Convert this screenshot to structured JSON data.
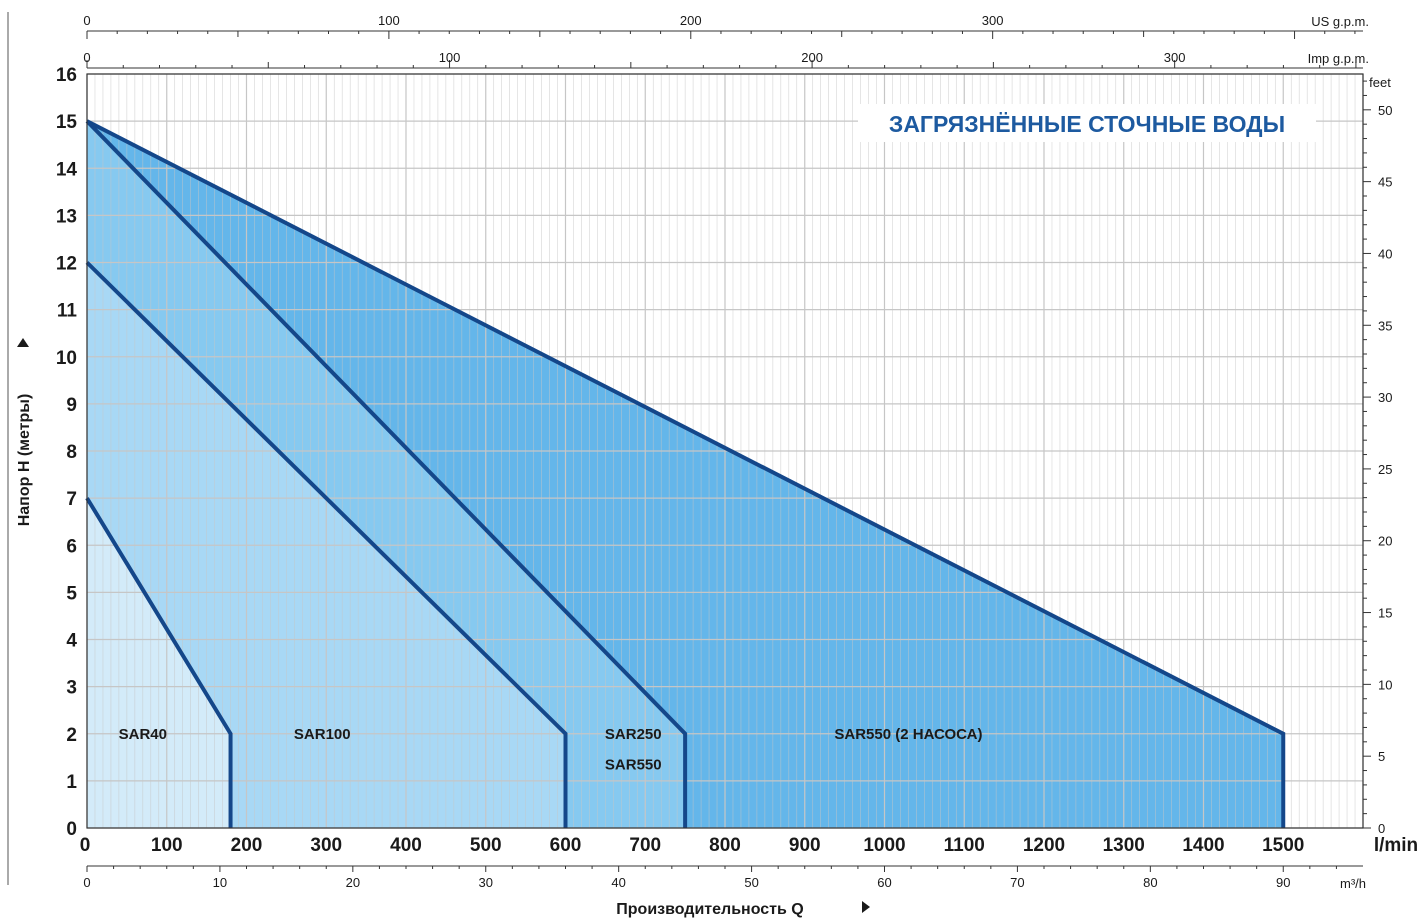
{
  "chart_data": {
    "type": "area",
    "title": "ЗАГРЯЗНЁННЫЕ СТОЧНЫЕ ВОДЫ",
    "xlabel": "Производительность Q",
    "ylabel": "Напор H (метры)",
    "x_unit": "l/min",
    "xlim": [
      0,
      1600
    ],
    "ylim": [
      0,
      16
    ],
    "x_ticks": [
      0,
      100,
      200,
      300,
      400,
      500,
      600,
      700,
      800,
      900,
      1000,
      1100,
      1200,
      1300,
      1400,
      1500
    ],
    "y_ticks": [
      0,
      1,
      2,
      3,
      4,
      5,
      6,
      7,
      8,
      9,
      10,
      11,
      12,
      13,
      14,
      15,
      16
    ],
    "grid": true,
    "secondary_axes": {
      "top_us_gpm": {
        "label": "US g.p.m.",
        "ticks": [
          0,
          100,
          200,
          300
        ]
      },
      "top_imp_gpm": {
        "label": "Imp g.p.m.",
        "ticks": [
          0,
          100,
          200,
          300
        ]
      },
      "right_feet": {
        "label": "feet",
        "ticks": [
          0,
          5,
          10,
          15,
          20,
          25,
          30,
          35,
          40,
          45,
          50
        ]
      },
      "bottom_m3h": {
        "label": "m³/h",
        "ticks": [
          0,
          10,
          20,
          30,
          40,
          50,
          60,
          70,
          80,
          90
        ]
      }
    },
    "series": [
      {
        "name": "SAR40",
        "x": [
          0,
          180,
          180
        ],
        "y": [
          7,
          2,
          0
        ],
        "fill": "#d3ebf9"
      },
      {
        "name": "SAR100",
        "x": [
          0,
          600,
          600
        ],
        "y": [
          12,
          2,
          0
        ],
        "fill": "#a8d8f5"
      },
      {
        "name": "SAR250 SAR550",
        "x": [
          0,
          750,
          750
        ],
        "y": [
          15,
          2,
          0
        ],
        "fill": "#86c9f0"
      },
      {
        "name": "SAR550 (2 НАСОСА)",
        "x": [
          0,
          1500,
          1500
        ],
        "y": [
          15,
          2,
          0
        ],
        "fill": "#64b6ea"
      }
    ],
    "region_labels": [
      {
        "text": "SAR40",
        "x": 70,
        "y": 2
      },
      {
        "text": "SAR100",
        "x": 295,
        "y": 2
      },
      {
        "text": "SAR250",
        "x": 685,
        "y": 2
      },
      {
        "text": "SAR550",
        "x": 685,
        "y": 1.35
      },
      {
        "text": "SAR550 (2 НАСОСА)",
        "x": 1030,
        "y": 2
      }
    ],
    "colors": {
      "curve": "#14478a",
      "grid": "#c6c6c6",
      "axis": "#333333",
      "title": "#1d5aa0"
    }
  }
}
